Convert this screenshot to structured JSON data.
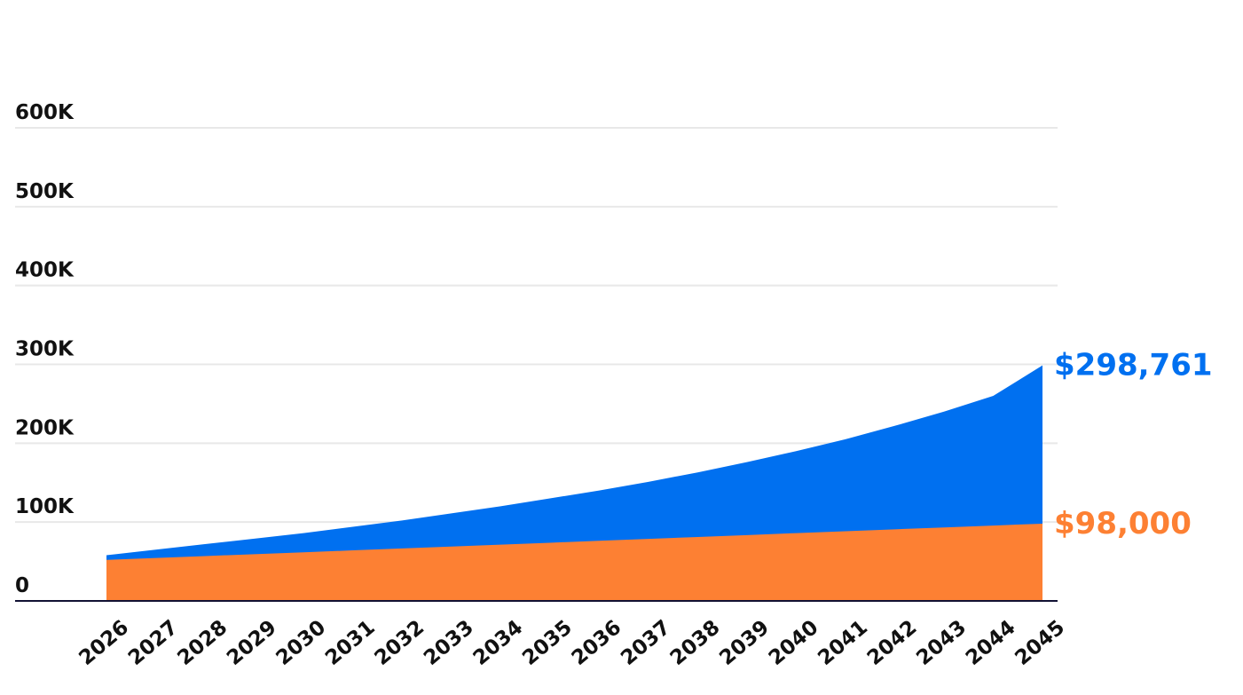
{
  "colors": {
    "total_value": "#0070f0",
    "contributions": "#fd8033",
    "gridline": "#e8e8e8",
    "axis": "#111133",
    "text": "#111111"
  },
  "chart_data": {
    "type": "area",
    "stacked": false,
    "x": [
      2026,
      2027,
      2028,
      2029,
      2030,
      2031,
      2032,
      2033,
      2034,
      2035,
      2036,
      2037,
      2038,
      2039,
      2040,
      2041,
      2042,
      2043,
      2044,
      2045
    ],
    "x_tick_labels": [
      "2026",
      "2027",
      "2028",
      "2029",
      "2030",
      "2031",
      "2032",
      "2033",
      "2034",
      "2035",
      "2036",
      "2037",
      "2038",
      "2039",
      "2040",
      "2041",
      "2042",
      "2043",
      "2044",
      "2045"
    ],
    "ylim": [
      0,
      600000
    ],
    "y_ticks": [
      0,
      100000,
      200000,
      300000,
      400000,
      500000,
      600000
    ],
    "y_tick_labels": [
      "0",
      "100K",
      "200K",
      "300K",
      "400K",
      "500K",
      "600K"
    ],
    "grid": true,
    "legend": "none",
    "series": [
      {
        "key": "total",
        "color": "#0070f0",
        "values": [
          58000,
          65000,
          72000,
          79000,
          86000,
          94000,
          102000,
          111000,
          120000,
          130000,
          140000,
          151000,
          163000,
          176000,
          190000,
          205000,
          222000,
          240000,
          260000,
          298761
        ],
        "end_label": "$298,761"
      },
      {
        "key": "contributions",
        "color": "#fd8033",
        "values": [
          52000,
          54400,
          56900,
          59300,
          61700,
          64100,
          66600,
          69000,
          71400,
          73800,
          76300,
          78700,
          81100,
          83500,
          86000,
          88400,
          90800,
          93200,
          95600,
          98000
        ],
        "end_label": "$98,000"
      }
    ]
  }
}
